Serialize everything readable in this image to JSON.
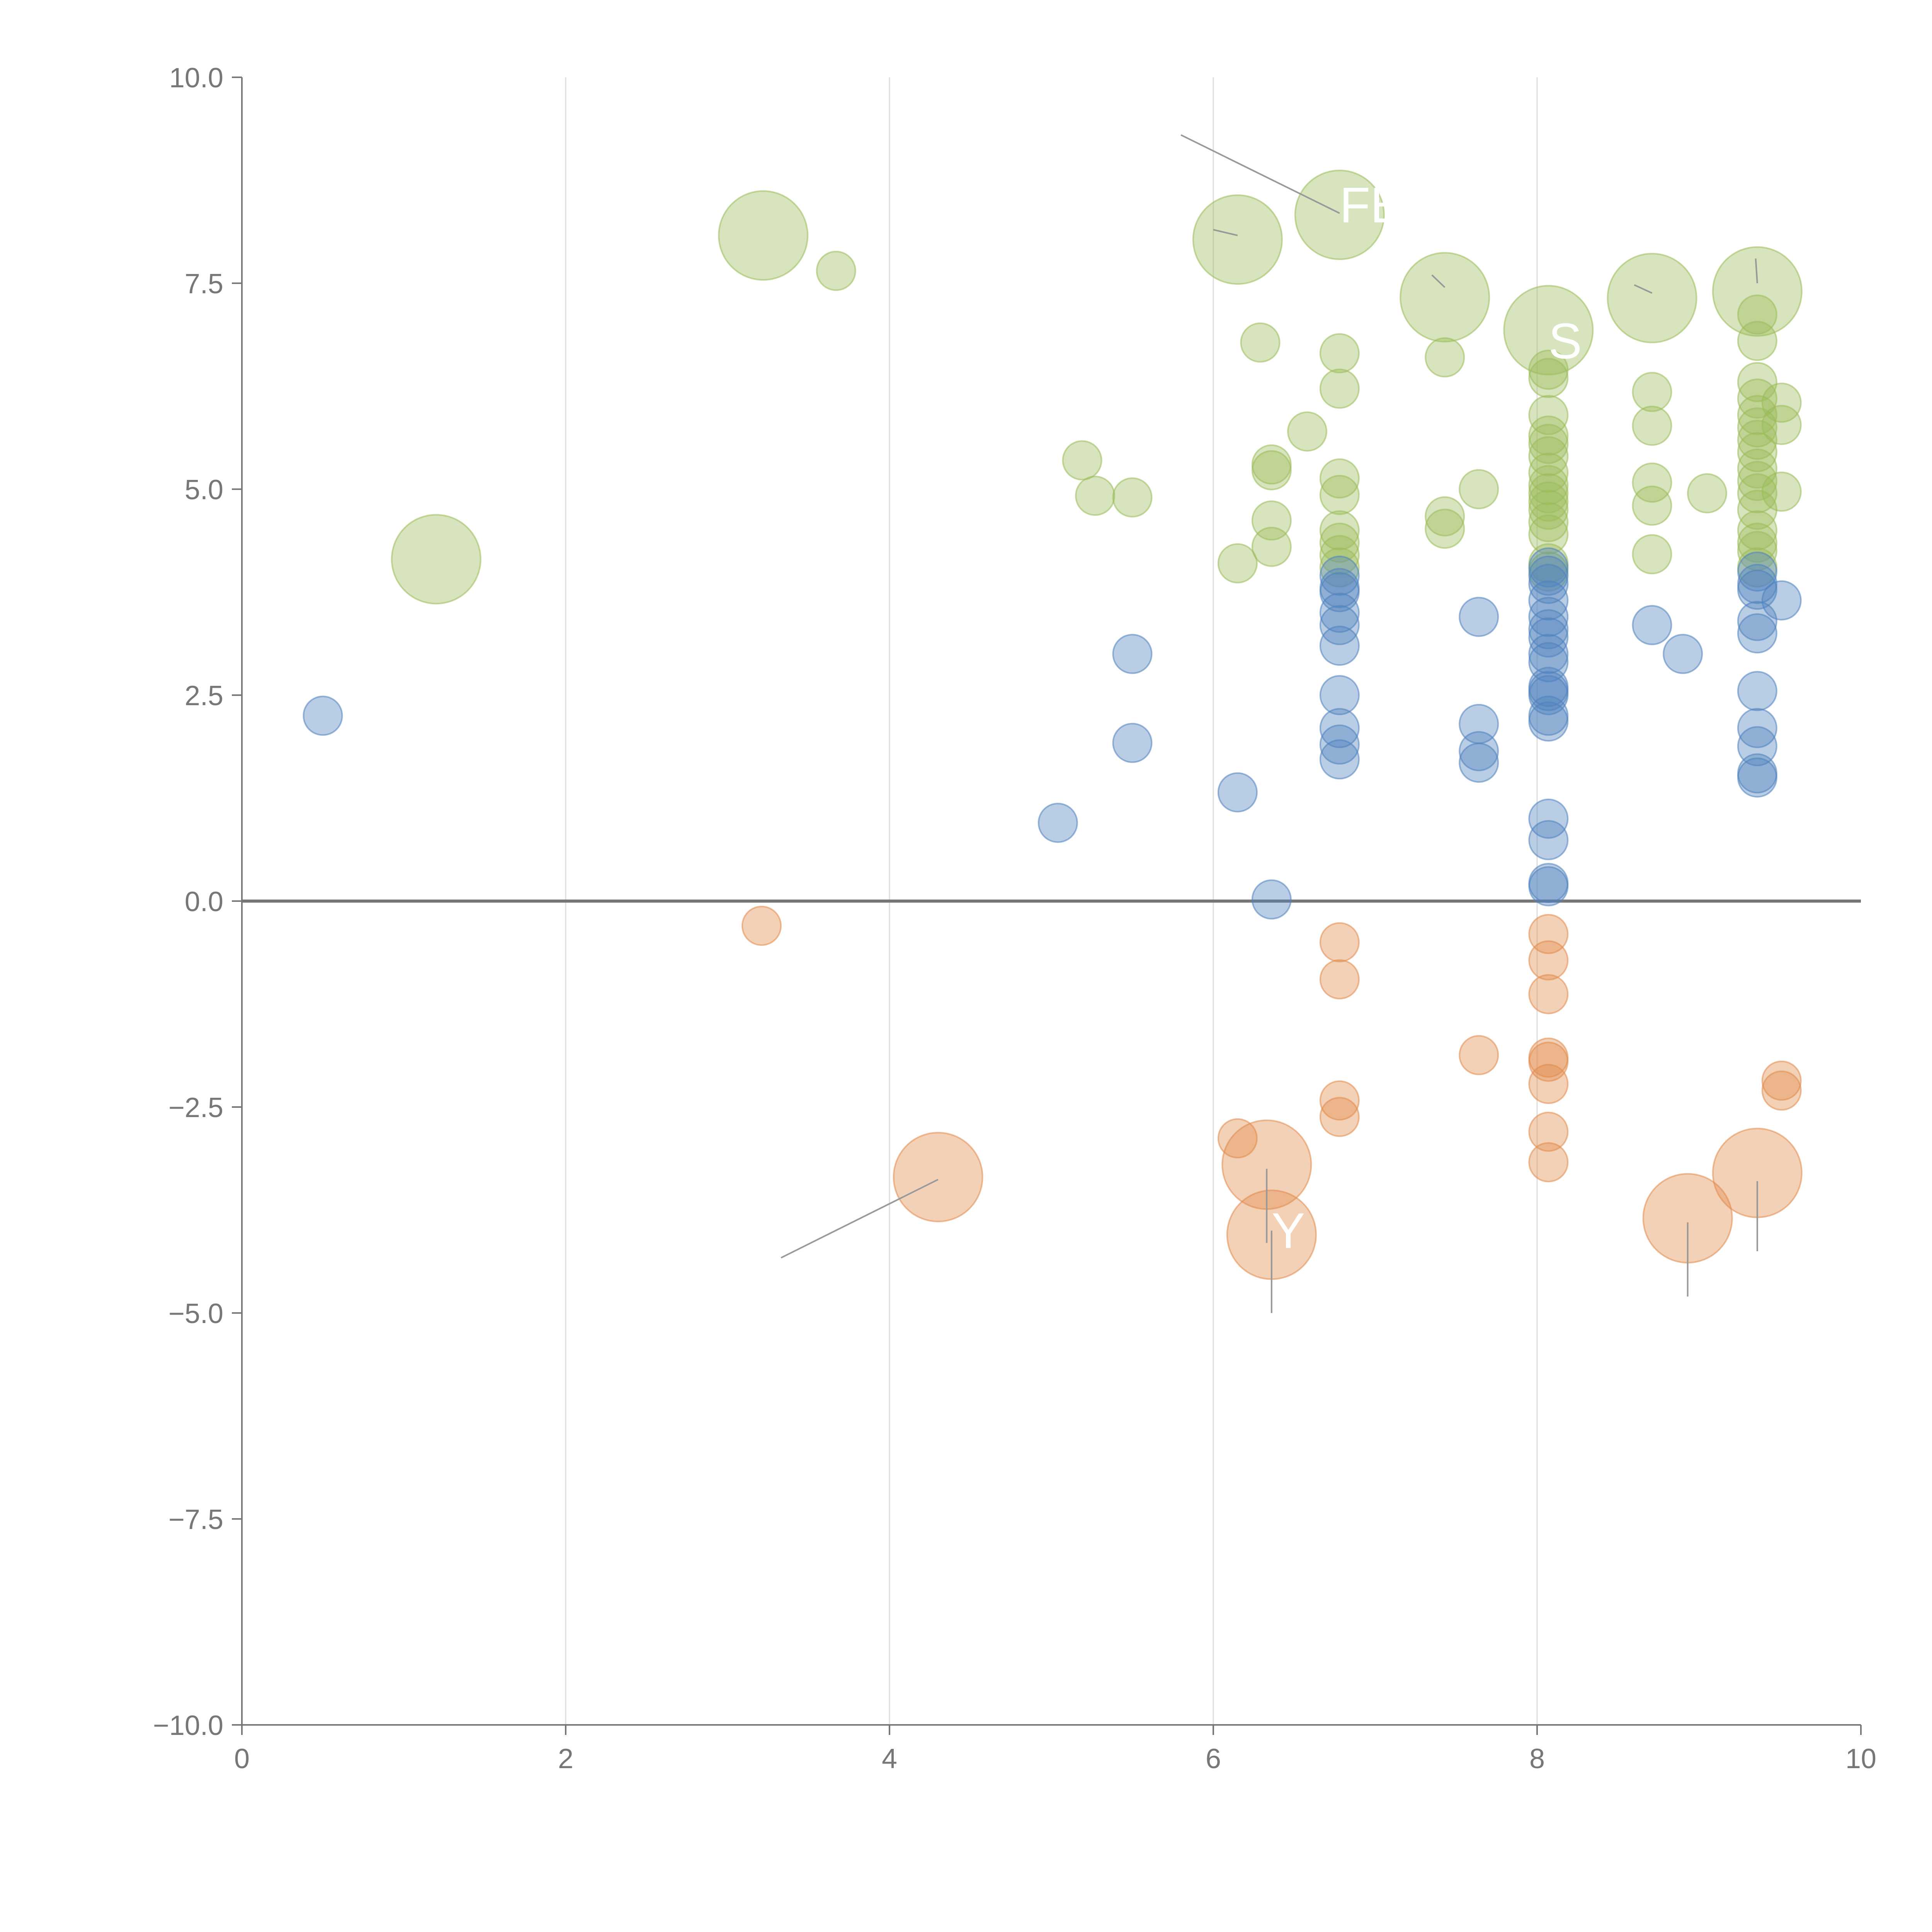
{
  "chart_data": {
    "type": "scatter",
    "title": "",
    "xlabel": "",
    "ylabel": "",
    "xlim": [
      0,
      10
    ],
    "ylim": [
      -10,
      10
    ],
    "x_ticks": [
      "0",
      "2",
      "4",
      "6",
      "8",
      "10"
    ],
    "y_ticks": [
      "10.0",
      "7.5",
      "5.0",
      "2.5",
      "0.0",
      "−2.5",
      "−5.0",
      "−7.5",
      "−10.0"
    ],
    "grid": "vertical",
    "legend": "none",
    "colors": {
      "green": "#9bbb59",
      "blue": "#4f81bd",
      "orange": "#e08b4c",
      "axis": "#777777",
      "zero_line": "#777777",
      "grid": "#dddddd",
      "leader": "#999999",
      "label_text": "#ffffff"
    },
    "series": [
      {
        "name": "green",
        "color_key": "green",
        "points": [
          [
            1.2,
            4.15,
            2
          ],
          [
            3.22,
            8.08,
            2
          ],
          [
            3.67,
            7.65,
            1
          ],
          [
            5.19,
            5.35,
            1
          ],
          [
            5.27,
            4.92,
            1
          ],
          [
            5.5,
            4.9,
            1
          ],
          [
            6.15,
            8.03,
            2
          ],
          [
            6.15,
            4.1,
            1
          ],
          [
            6.29,
            6.78,
            1
          ],
          [
            6.36,
            5.3,
            1
          ],
          [
            6.36,
            5.23,
            1
          ],
          [
            6.36,
            4.62,
            1
          ],
          [
            6.36,
            4.3,
            1
          ],
          [
            6.58,
            5.7,
            1
          ],
          [
            6.78,
            8.33,
            2
          ],
          [
            6.78,
            6.65,
            1
          ],
          [
            6.78,
            6.22,
            1
          ],
          [
            6.78,
            5.13,
            1
          ],
          [
            6.78,
            4.93,
            1
          ],
          [
            6.78,
            4.5,
            1
          ],
          [
            6.78,
            4.35,
            1
          ],
          [
            6.78,
            4.2,
            1
          ],
          [
            6.78,
            4.05,
            1
          ],
          [
            7.43,
            7.33,
            2
          ],
          [
            7.43,
            6.6,
            1
          ],
          [
            7.43,
            4.67,
            1
          ],
          [
            7.43,
            4.52,
            1
          ],
          [
            7.64,
            5.0,
            1
          ],
          [
            8.07,
            6.93,
            2
          ],
          [
            8.07,
            6.45,
            1
          ],
          [
            8.07,
            6.35,
            1
          ],
          [
            8.07,
            5.9,
            1
          ],
          [
            8.07,
            5.65,
            1
          ],
          [
            8.07,
            5.55,
            1
          ],
          [
            8.07,
            5.4,
            1
          ],
          [
            8.07,
            5.2,
            1
          ],
          [
            8.07,
            5.05,
            1
          ],
          [
            8.07,
            4.95,
            1
          ],
          [
            8.07,
            4.85,
            1
          ],
          [
            8.07,
            4.75,
            1
          ],
          [
            8.07,
            4.6,
            1
          ],
          [
            8.07,
            4.45,
            1
          ],
          [
            8.07,
            4.1,
            1
          ],
          [
            8.07,
            4.0,
            1
          ],
          [
            8.71,
            7.32,
            2
          ],
          [
            8.71,
            6.18,
            1
          ],
          [
            8.71,
            5.77,
            1
          ],
          [
            8.71,
            5.08,
            1
          ],
          [
            8.71,
            4.8,
            1
          ],
          [
            8.71,
            4.21,
            1
          ],
          [
            9.05,
            4.95,
            1
          ],
          [
            9.36,
            7.4,
            2
          ],
          [
            9.36,
            7.12,
            1
          ],
          [
            9.36,
            6.8,
            1
          ],
          [
            9.36,
            6.3,
            1
          ],
          [
            9.36,
            6.1,
            1
          ],
          [
            9.36,
            5.9,
            1
          ],
          [
            9.36,
            5.75,
            1
          ],
          [
            9.36,
            5.6,
            1
          ],
          [
            9.36,
            5.45,
            1
          ],
          [
            9.36,
            5.25,
            1
          ],
          [
            9.36,
            5.1,
            1
          ],
          [
            9.36,
            4.95,
            1
          ],
          [
            9.36,
            4.75,
            1
          ],
          [
            9.36,
            4.5,
            1
          ],
          [
            9.36,
            4.35,
            1
          ],
          [
            9.36,
            4.25,
            1
          ],
          [
            9.36,
            4.05,
            1
          ],
          [
            9.51,
            6.05,
            1
          ],
          [
            9.51,
            5.78,
            1
          ],
          [
            9.51,
            4.97,
            1
          ]
        ]
      },
      {
        "name": "blue",
        "color_key": "blue",
        "points": [
          [
            0.5,
            2.25,
            1
          ],
          [
            5.04,
            0.95,
            1
          ],
          [
            5.5,
            3.0,
            1
          ],
          [
            5.5,
            1.92,
            1
          ],
          [
            6.15,
            1.32,
            1
          ],
          [
            6.36,
            0.02,
            1
          ],
          [
            6.78,
            3.95,
            1
          ],
          [
            6.78,
            3.8,
            1
          ],
          [
            6.78,
            3.75,
            1
          ],
          [
            6.78,
            3.5,
            1
          ],
          [
            6.78,
            3.35,
            1
          ],
          [
            6.78,
            3.1,
            1
          ],
          [
            6.78,
            2.5,
            1
          ],
          [
            6.78,
            2.1,
            1
          ],
          [
            6.78,
            1.9,
            1
          ],
          [
            6.78,
            1.72,
            1
          ],
          [
            7.64,
            3.45,
            1
          ],
          [
            7.64,
            2.15,
            1
          ],
          [
            7.64,
            1.82,
            1
          ],
          [
            7.64,
            1.68,
            1
          ],
          [
            8.07,
            4.05,
            1
          ],
          [
            8.07,
            3.95,
            1
          ],
          [
            8.07,
            3.85,
            1
          ],
          [
            8.07,
            3.65,
            1
          ],
          [
            8.07,
            3.45,
            1
          ],
          [
            8.07,
            3.3,
            1
          ],
          [
            8.07,
            3.2,
            1
          ],
          [
            8.07,
            3.0,
            1
          ],
          [
            8.07,
            2.9,
            1
          ],
          [
            8.07,
            2.6,
            1
          ],
          [
            8.07,
            2.55,
            1
          ],
          [
            8.07,
            2.5,
            1
          ],
          [
            8.07,
            2.25,
            1
          ],
          [
            8.07,
            2.18,
            1
          ],
          [
            8.07,
            1.0,
            1
          ],
          [
            8.07,
            0.74,
            1
          ],
          [
            8.07,
            0.22,
            1
          ],
          [
            8.07,
            0.18,
            1
          ],
          [
            8.71,
            3.35,
            1
          ],
          [
            8.9,
            3.0,
            1
          ],
          [
            9.36,
            4.0,
            1
          ],
          [
            9.36,
            3.85,
            1
          ],
          [
            9.36,
            3.78,
            1
          ],
          [
            9.36,
            3.4,
            1
          ],
          [
            9.36,
            3.25,
            1
          ],
          [
            9.36,
            2.55,
            1
          ],
          [
            9.36,
            2.1,
            1
          ],
          [
            9.36,
            1.88,
            1
          ],
          [
            9.36,
            1.55,
            1
          ],
          [
            9.36,
            1.5,
            1
          ],
          [
            9.51,
            3.65,
            1
          ]
        ]
      },
      {
        "name": "orange",
        "color_key": "orange",
        "points": [
          [
            3.21,
            -0.3,
            1
          ],
          [
            4.3,
            -3.35,
            2
          ],
          [
            6.15,
            -2.88,
            1
          ],
          [
            6.33,
            -3.2,
            2
          ],
          [
            6.36,
            -4.05,
            2
          ],
          [
            6.78,
            -0.5,
            1
          ],
          [
            6.78,
            -0.95,
            1
          ],
          [
            6.78,
            -2.42,
            1
          ],
          [
            6.78,
            -2.62,
            1
          ],
          [
            7.64,
            -1.87,
            1
          ],
          [
            8.07,
            -0.4,
            1
          ],
          [
            8.07,
            -0.72,
            1
          ],
          [
            8.07,
            -1.13,
            1
          ],
          [
            8.07,
            -1.9,
            1
          ],
          [
            8.07,
            -1.95,
            1
          ],
          [
            8.07,
            -2.22,
            1
          ],
          [
            8.07,
            -2.8,
            1
          ],
          [
            8.07,
            -3.17,
            1
          ],
          [
            8.93,
            -3.85,
            2
          ],
          [
            9.36,
            -3.3,
            2
          ],
          [
            9.51,
            -2.18,
            1
          ],
          [
            9.51,
            -2.3,
            1
          ]
        ]
      }
    ],
    "labels": [
      {
        "text": "FE",
        "x": 6.78,
        "y": 8.45
      },
      {
        "text": "S",
        "x": 8.07,
        "y": 6.8
      },
      {
        "text": "Y",
        "x": 6.36,
        "y": -4.0
      }
    ],
    "leader_lines": [
      [
        5.8,
        9.3,
        6.78,
        8.35
      ],
      [
        6.0,
        8.15,
        6.15,
        8.08
      ],
      [
        7.35,
        7.6,
        7.43,
        7.45
      ],
      [
        8.6,
        7.48,
        8.71,
        7.38
      ],
      [
        9.35,
        7.8,
        9.36,
        7.5
      ],
      [
        3.33,
        -4.33,
        4.3,
        -3.38
      ],
      [
        6.33,
        -3.25,
        6.33,
        -4.15
      ],
      [
        6.36,
        -4.0,
        6.36,
        -5.0
      ],
      [
        8.93,
        -3.9,
        8.93,
        -4.8
      ],
      [
        9.36,
        -3.4,
        9.36,
        -4.25
      ]
    ]
  }
}
